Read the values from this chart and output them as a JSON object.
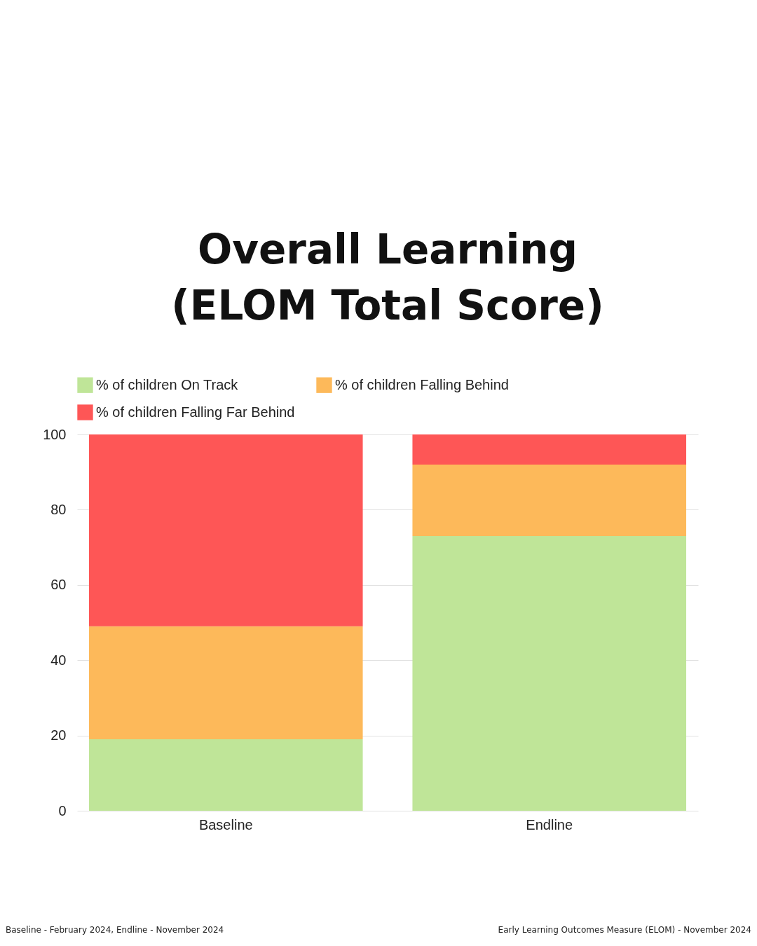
{
  "chart_data": {
    "type": "bar",
    "title": [
      "Overall Learning",
      "(ELOM Total Score)"
    ],
    "categories": [
      "Baseline",
      "Endline"
    ],
    "stacked": true,
    "series": [
      {
        "name": "% of children On Track",
        "color": "#bfe598",
        "values": [
          19,
          73
        ]
      },
      {
        "name": "% of children Falling Behind",
        "color": "#fdb95a",
        "values": [
          30,
          19
        ]
      },
      {
        "name": "% of children Falling Far Behind",
        "color": "#fe5656",
        "values": [
          51,
          8
        ]
      }
    ],
    "ylim": [
      0,
      100
    ],
    "yticks": [
      0,
      20,
      40,
      60,
      80,
      100
    ],
    "grid": "y",
    "legend": "top",
    "annotations": [
      "Baseline - February 2024, Endline - November 2024",
      "Early Learning Outcomes Measure (ELOM) - November 2024"
    ]
  }
}
